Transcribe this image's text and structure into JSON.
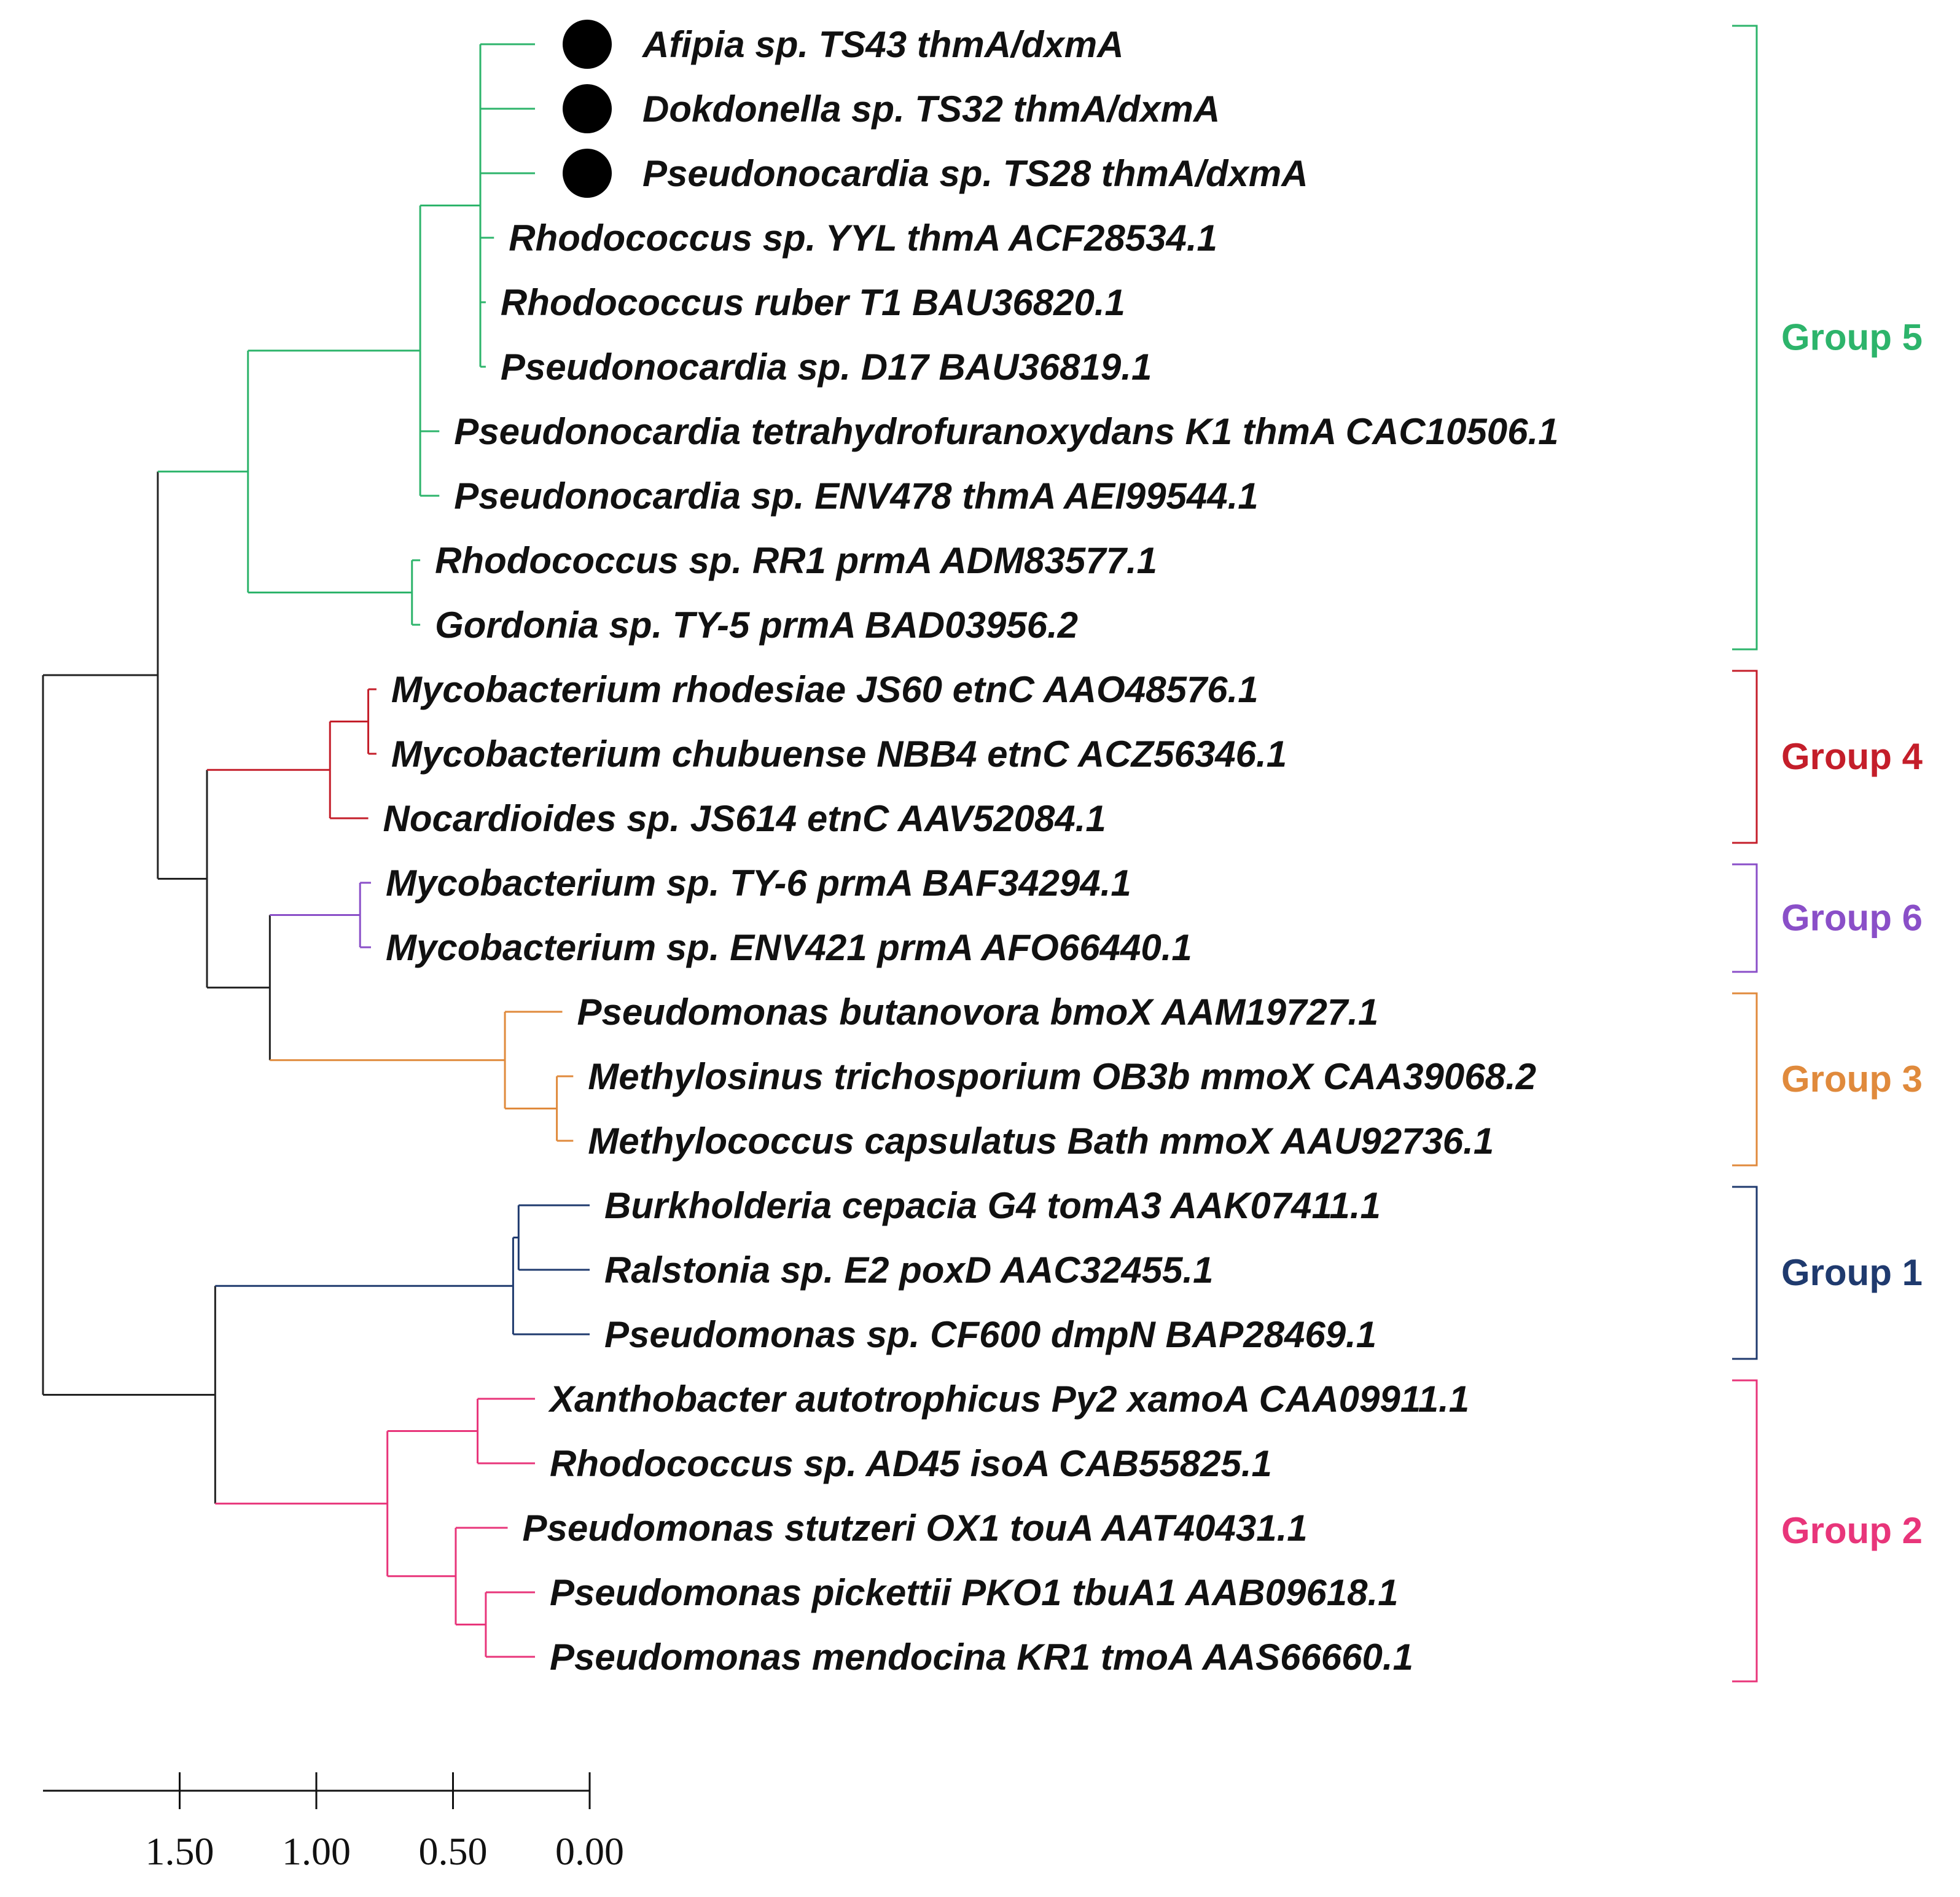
{
  "colors": {
    "root": "#222222",
    "group5": "#2db46b",
    "group4": "#c41e2a",
    "group6": "#8a4fc8",
    "group3": "#e08a3c",
    "group1": "#1f3a6e",
    "group2": "#e8357a"
  },
  "leaves": [
    {
      "id": "L1",
      "label": "Afipia sp. TS43 thmA/dxmA",
      "group": "group5",
      "marker": "filled-circle"
    },
    {
      "id": "L2",
      "label": "Dokdonella sp. TS32 thmA/dxmA",
      "group": "group5",
      "marker": "filled-circle"
    },
    {
      "id": "L3",
      "label": "Pseudonocardia sp. TS28 thmA/dxmA",
      "group": "group5",
      "marker": "filled-circle"
    },
    {
      "id": "L4",
      "label": "Rhodococcus sp. YYL thmA ACF28534.1",
      "group": "group5"
    },
    {
      "id": "L5",
      "label": "Rhodococcus ruber T1 BAU36820.1",
      "group": "group5"
    },
    {
      "id": "L6",
      "label": "Pseudonocardia sp. D17 BAU36819.1",
      "group": "group5"
    },
    {
      "id": "L7",
      "label": "Pseudonocardia tetrahydrofuranoxydans K1 thmA CAC10506.1",
      "group": "group5"
    },
    {
      "id": "L8",
      "label": "Pseudonocardia sp. ENV478 thmA AEI99544.1",
      "group": "group5"
    },
    {
      "id": "L9",
      "label": "Rhodococcus sp. RR1 prmA ADM83577.1",
      "group": "group5"
    },
    {
      "id": "L10",
      "label": "Gordonia sp. TY-5 prmA BAD03956.2",
      "group": "group5"
    },
    {
      "id": "L11",
      "label": "Mycobacterium rhodesiae JS60 etnC AAO48576.1",
      "group": "group4"
    },
    {
      "id": "L12",
      "label": "Mycobacterium chubuense NBB4 etnC ACZ56346.1",
      "group": "group4"
    },
    {
      "id": "L13",
      "label": "Nocardioides sp. JS614 etnC AAV52084.1",
      "group": "group4"
    },
    {
      "id": "L14",
      "label": "Mycobacterium sp. TY-6 prmA BAF34294.1",
      "group": "group6"
    },
    {
      "id": "L15",
      "label": "Mycobacterium sp. ENV421 prmA AFO66440.1",
      "group": "group6"
    },
    {
      "id": "L16",
      "label": "Pseudomonas butanovora bmoX AAM19727.1",
      "group": "group3"
    },
    {
      "id": "L17",
      "label": "Methylosinus trichosporium OB3b mmoX CAA39068.2",
      "group": "group3"
    },
    {
      "id": "L18",
      "label": "Methylococcus capsulatus Bath mmoX AAU92736.1",
      "group": "group3"
    },
    {
      "id": "L19",
      "label": "Burkholderia cepacia G4 tomA3 AAK07411.1",
      "group": "group1"
    },
    {
      "id": "L20",
      "label": "Ralstonia sp. E2 poxD AAC32455.1",
      "group": "group1"
    },
    {
      "id": "L21",
      "label": "Pseudomonas sp. CF600 dmpN BAP28469.1",
      "group": "group1"
    },
    {
      "id": "L22",
      "label": "Xanthobacter autotrophicus Py2 xamoA CAA09911.1",
      "group": "group2"
    },
    {
      "id": "L23",
      "label": "Rhodococcus sp. AD45 isoA CAB55825.1",
      "group": "group2"
    },
    {
      "id": "L24",
      "label": "Pseudomonas stutzeri OX1 touA AAT40431.1",
      "group": "group2"
    },
    {
      "id": "L25",
      "label": "Pseudomonas pickettii PKO1 tbuA1 AAB09618.1",
      "group": "group2"
    },
    {
      "id": "L26",
      "label": "Pseudomonas mendocina KR1 tmoA AAS66660.1",
      "group": "group2"
    }
  ],
  "groups": [
    {
      "key": "group5",
      "label": "Group 5",
      "first": 0,
      "last": 9
    },
    {
      "key": "group4",
      "label": "Group 4",
      "first": 10,
      "last": 12
    },
    {
      "key": "group6",
      "label": "Group 6",
      "first": 13,
      "last": 14
    },
    {
      "key": "group3",
      "label": "Group 3",
      "first": 15,
      "last": 17
    },
    {
      "key": "group1",
      "label": "Group 1",
      "first": 18,
      "last": 20
    },
    {
      "key": "group2",
      "label": "Group 2",
      "first": 21,
      "last": 25
    }
  ],
  "tree": {
    "name": "root",
    "h": 2.0,
    "color": "root",
    "children": [
      {
        "name": "n-upper",
        "h": 1.58,
        "color": "root",
        "children": [
          {
            "name": "n-g5",
            "h": 1.25,
            "color": "group5",
            "children": [
              {
                "name": "n-g5a",
                "h": 0.62,
                "color": "group5",
                "children": [
                  {
                    "name": "n-g5-core",
                    "h": 0.4,
                    "color": "group5",
                    "children": [
                      {
                        "leaf": "L1",
                        "h": 0.2
                      },
                      {
                        "leaf": "L2",
                        "h": 0.2
                      },
                      {
                        "leaf": "L3",
                        "h": 0.2
                      },
                      {
                        "leaf": "L4",
                        "h": 0.35
                      },
                      {
                        "leaf": "L5",
                        "h": 0.38
                      },
                      {
                        "leaf": "L6",
                        "h": 0.38
                      }
                    ]
                  },
                  {
                    "leaf": "L7",
                    "h": 0.55
                  },
                  {
                    "leaf": "L8",
                    "h": 0.55
                  }
                ]
              },
              {
                "name": "n-g5b",
                "h": 0.65,
                "color": "group5",
                "children": [
                  {
                    "leaf": "L9",
                    "h": 0.62
                  },
                  {
                    "leaf": "L10",
                    "h": 0.62
                  }
                ]
              }
            ]
          },
          {
            "name": "n-mid",
            "h": 1.4,
            "color": "root",
            "children": [
              {
                "name": "n-g4",
                "h": 0.95,
                "color": "group4",
                "children": [
                  {
                    "name": "n-g4a",
                    "h": 0.81,
                    "color": "group4",
                    "children": [
                      {
                        "leaf": "L11",
                        "h": 0.78
                      },
                      {
                        "leaf": "L12",
                        "h": 0.78
                      }
                    ]
                  },
                  {
                    "leaf": "L13",
                    "h": 0.81
                  }
                ]
              },
              {
                "name": "n-g63",
                "h": 1.17,
                "color": "root",
                "children": [
                  {
                    "name": "n-g6",
                    "h": 0.84,
                    "color": "group6",
                    "children": [
                      {
                        "leaf": "L14",
                        "h": 0.8
                      },
                      {
                        "leaf": "L15",
                        "h": 0.8
                      }
                    ]
                  },
                  {
                    "name": "n-g3",
                    "h": 0.31,
                    "color": "group3",
                    "children": [
                      {
                        "leaf": "L16",
                        "h": 0.1
                      },
                      {
                        "name": "n-g3a",
                        "h": 0.12,
                        "color": "group3",
                        "children": [
                          {
                            "leaf": "L17",
                            "h": 0.06
                          },
                          {
                            "leaf": "L18",
                            "h": 0.06
                          }
                        ]
                      }
                    ]
                  }
                ]
              }
            ]
          }
        ]
      },
      {
        "name": "n-lower",
        "h": 1.37,
        "color": "root",
        "children": [
          {
            "name": "n-g1",
            "h": 0.28,
            "color": "group1",
            "children": [
              {
                "name": "n-g1a",
                "h": 0.26,
                "color": "group1",
                "children": [
                  {
                    "leaf": "L19",
                    "h": 0.0
                  },
                  {
                    "leaf": "L20",
                    "h": 0.0
                  }
                ]
              },
              {
                "leaf": "L21",
                "h": 0.0
              }
            ]
          },
          {
            "name": "n-g2",
            "h": 0.74,
            "color": "group2",
            "children": [
              {
                "name": "n-g2a",
                "h": 0.41,
                "color": "group2",
                "children": [
                  {
                    "leaf": "L22",
                    "h": 0.2
                  },
                  {
                    "leaf": "L23",
                    "h": 0.2
                  }
                ]
              },
              {
                "name": "n-g2b",
                "h": 0.49,
                "color": "group2",
                "children": [
                  {
                    "leaf": "L24",
                    "h": 0.3
                  },
                  {
                    "name": "n-g2c",
                    "h": 0.38,
                    "color": "group2",
                    "children": [
                      {
                        "leaf": "L25",
                        "h": 0.2
                      },
                      {
                        "leaf": "L26",
                        "h": 0.2
                      }
                    ]
                  }
                ]
              }
            ]
          }
        ]
      }
    ]
  },
  "scale_bar": {
    "min": 0.0,
    "max": 2.0,
    "ticks": [
      1.5,
      1.0,
      0.5,
      0.0
    ],
    "tick_labels": [
      "1.50",
      "1.00",
      "0.50",
      "0.00"
    ]
  }
}
